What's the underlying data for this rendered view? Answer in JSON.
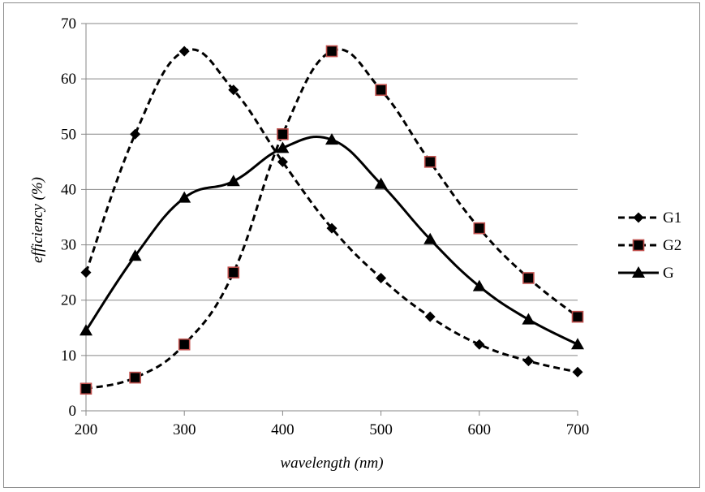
{
  "chart_data": {
    "type": "line",
    "title": "",
    "xlabel": "wavelength (nm)",
    "ylabel": "efficiency (%)",
    "xlim": [
      200,
      700
    ],
    "ylim": [
      0,
      70
    ],
    "x_ticks": [
      200,
      300,
      400,
      500,
      600,
      700
    ],
    "y_ticks": [
      0,
      10,
      20,
      30,
      40,
      50,
      60,
      70
    ],
    "grid": "horizontal",
    "legend_position": "right",
    "x": [
      200,
      250,
      300,
      350,
      400,
      450,
      500,
      550,
      600,
      650,
      700
    ],
    "series": [
      {
        "name": "G1",
        "values": [
          25,
          50,
          65,
          58,
          45,
          33,
          24,
          17,
          12,
          9,
          7
        ],
        "line_style": "dashed",
        "marker": "diamond",
        "color": "#000000"
      },
      {
        "name": "G2",
        "values": [
          4,
          6,
          12,
          25,
          50,
          65,
          58,
          45,
          33,
          24,
          17
        ],
        "line_style": "dashed",
        "marker": "square",
        "color": "#000000",
        "marker_edge": "#c0504d"
      },
      {
        "name": "G",
        "values": [
          14.5,
          28,
          38.5,
          41.5,
          47.5,
          49,
          41,
          31,
          22.5,
          16.5,
          12
        ],
        "line_style": "solid",
        "marker": "triangle",
        "color": "#000000"
      }
    ]
  }
}
